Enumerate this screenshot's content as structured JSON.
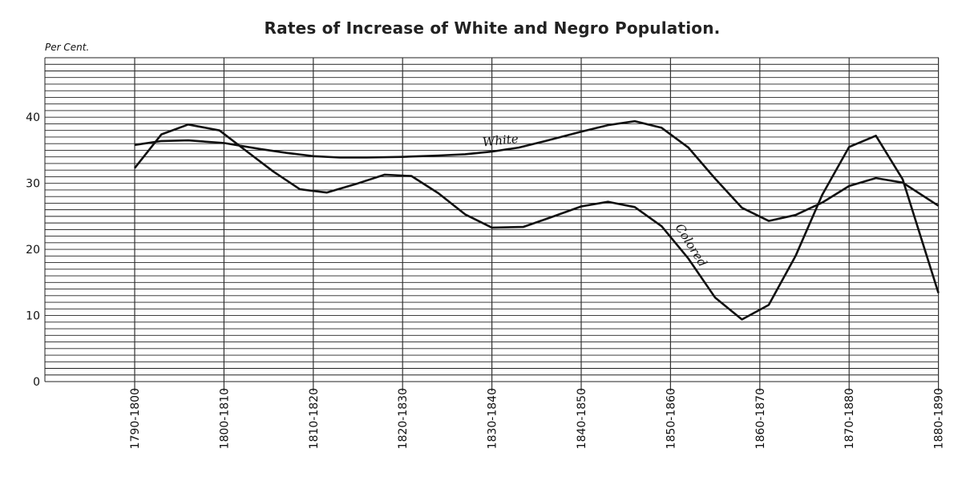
{
  "chart_data": {
    "type": "line",
    "title": "Rates of Increase of White and Negro Population.",
    "ylabel": "Per Cent.",
    "xlabel": "",
    "ylim": [
      0,
      49
    ],
    "yticks": [
      0,
      10,
      20,
      30,
      40
    ],
    "y_minor_step": 1,
    "categories": [
      "1790-1800",
      "1800-1810",
      "1810-1820",
      "1820-1830",
      "1830-1840",
      "1840-1850",
      "1850-1860",
      "1860-1870",
      "1870-1880",
      "1880-1890"
    ],
    "grid": true,
    "series": [
      {
        "name": "White",
        "label_anchor": [
          3.9,
          35.6
        ],
        "label_angle": -6,
        "points": [
          [
            0.0,
            35.8
          ],
          [
            0.3,
            36.4
          ],
          [
            0.6,
            36.5
          ],
          [
            1.0,
            36.1
          ],
          [
            1.4,
            35.2
          ],
          [
            1.7,
            34.6
          ],
          [
            2.0,
            34.1
          ],
          [
            2.3,
            33.9
          ],
          [
            2.6,
            33.9
          ],
          [
            3.0,
            34.0
          ],
          [
            3.4,
            34.2
          ],
          [
            3.7,
            34.4
          ],
          [
            4.0,
            34.8
          ],
          [
            4.3,
            35.4
          ],
          [
            4.6,
            36.4
          ],
          [
            5.0,
            37.8
          ],
          [
            5.3,
            38.8
          ],
          [
            5.6,
            39.4
          ],
          [
            5.9,
            38.4
          ],
          [
            6.2,
            35.4
          ],
          [
            6.5,
            30.7
          ],
          [
            6.8,
            26.3
          ],
          [
            7.1,
            24.3
          ],
          [
            7.4,
            25.2
          ],
          [
            7.7,
            27.1
          ],
          [
            8.0,
            29.6
          ],
          [
            8.3,
            30.8
          ],
          [
            8.6,
            30.1
          ],
          [
            9.0,
            26.6
          ]
        ]
      },
      {
        "name": "Colored",
        "label_anchor": [
          6.05,
          23.4
        ],
        "label_angle": 58,
        "points": [
          [
            0.0,
            32.3
          ],
          [
            0.3,
            37.4
          ],
          [
            0.6,
            38.9
          ],
          [
            0.95,
            38.0
          ],
          [
            1.2,
            35.4
          ],
          [
            1.55,
            31.8
          ],
          [
            1.85,
            29.1
          ],
          [
            2.15,
            28.6
          ],
          [
            2.5,
            30.0
          ],
          [
            2.8,
            31.3
          ],
          [
            3.1,
            31.1
          ],
          [
            3.4,
            28.5
          ],
          [
            3.7,
            25.3
          ],
          [
            4.0,
            23.3
          ],
          [
            4.35,
            23.4
          ],
          [
            4.65,
            24.8
          ],
          [
            5.0,
            26.5
          ],
          [
            5.3,
            27.2
          ],
          [
            5.6,
            26.4
          ],
          [
            5.9,
            23.5
          ],
          [
            6.2,
            18.6
          ],
          [
            6.5,
            12.7
          ],
          [
            6.8,
            9.4
          ],
          [
            7.1,
            11.6
          ],
          [
            7.4,
            19.0
          ],
          [
            7.7,
            28.3
          ],
          [
            8.0,
            35.5
          ],
          [
            8.3,
            37.2
          ],
          [
            8.6,
            30.6
          ],
          [
            9.0,
            13.4
          ]
        ]
      }
    ]
  }
}
